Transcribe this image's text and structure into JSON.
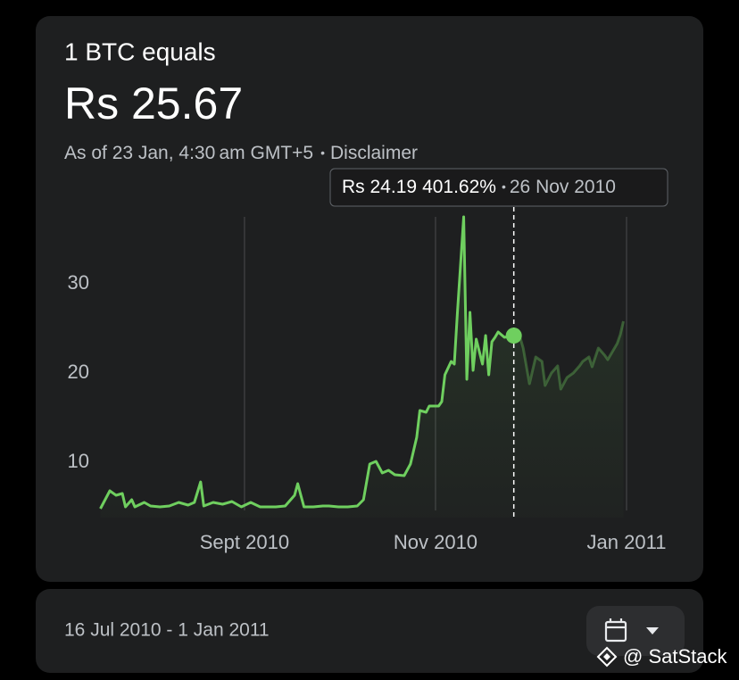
{
  "header": {
    "title": "1 BTC equals",
    "price": "Rs 25.67",
    "as_of": "As of 23 Jan, 4:30 am GMT+5",
    "separator": "•",
    "disclaimer": "Disclaimer"
  },
  "tooltip": {
    "price": "Rs 24.19",
    "change": "401.62%",
    "separator": "•",
    "date": "26 Nov 2010"
  },
  "chart_data": {
    "type": "line",
    "x": [
      "2010-07-17",
      "2010-07-20",
      "2010-07-22",
      "2010-07-24",
      "2010-07-25",
      "2010-07-27",
      "2010-07-28",
      "2010-07-31",
      "2010-08-02",
      "2010-08-05",
      "2010-08-08",
      "2010-08-11",
      "2010-08-14",
      "2010-08-16",
      "2010-08-18",
      "2010-08-19",
      "2010-08-22",
      "2010-08-25",
      "2010-08-28",
      "2010-08-31",
      "2010-09-03",
      "2010-09-06",
      "2010-09-08",
      "2010-09-11",
      "2010-09-14",
      "2010-09-17",
      "2010-09-18",
      "2010-09-20",
      "2010-09-23",
      "2010-09-26",
      "2010-09-28",
      "2010-10-01",
      "2010-10-04",
      "2010-10-07",
      "2010-10-09",
      "2010-10-11",
      "2010-10-13",
      "2010-10-15",
      "2010-10-17",
      "2010-10-19",
      "2010-10-22",
      "2010-10-24",
      "2010-10-26",
      "2010-10-27",
      "2010-10-29",
      "2010-10-30",
      "2010-11-02",
      "2010-11-03",
      "2010-11-04",
      "2010-11-06",
      "2010-11-07",
      "2010-11-08",
      "2010-11-10",
      "2010-11-11",
      "2010-11-12",
      "2010-11-13",
      "2010-11-14",
      "2010-11-16",
      "2010-11-17",
      "2010-11-18",
      "2010-11-19",
      "2010-11-20",
      "2010-11-21",
      "2010-11-23",
      "2010-11-26",
      "2010-11-28",
      "2010-11-29",
      "2010-12-01",
      "2010-12-03",
      "2010-12-05",
      "2010-12-06",
      "2010-12-08",
      "2010-12-10",
      "2010-12-11",
      "2010-12-13",
      "2010-12-15",
      "2010-12-17",
      "2010-12-18",
      "2010-12-20",
      "2010-12-21",
      "2010-12-23",
      "2010-12-25",
      "2010-12-26",
      "2010-12-29",
      "2010-12-30",
      "2010-12-31"
    ],
    "series": [
      {
        "color": "#6fcf5f",
        "values": [
          4.8,
          6.8,
          6.3,
          6.5,
          5.0,
          5.8,
          5.0,
          5.5,
          5.1,
          5.0,
          5.1,
          5.5,
          5.2,
          5.5,
          7.8,
          5.1,
          5.5,
          5.3,
          5.6,
          5.0,
          5.5,
          5.0,
          5.0,
          5.0,
          5.1,
          6.3,
          7.6,
          5.0,
          5.0,
          5.1,
          5.1,
          5.0,
          5.0,
          5.1,
          5.8,
          9.8,
          10.1,
          8.8,
          9.1,
          8.6,
          8.5,
          9.8,
          12.8,
          15.8,
          15.6,
          16.3,
          16.3,
          16.8,
          19.8,
          21.3,
          21.0,
          26.8,
          37.5,
          19.3,
          26.8,
          20.3,
          23.8,
          21.0,
          24.2,
          19.8,
          23.5,
          24.0,
          24.6,
          24.0,
          24.19,
          24.0,
          22.8,
          18.8,
          21.8,
          21.3,
          18.6,
          20.0,
          20.8,
          18.2,
          19.5,
          20.0,
          20.8,
          21.3,
          21.8,
          20.7,
          22.8,
          22.0,
          21.5,
          23.3,
          24.3,
          25.8
        ]
      }
    ],
    "xlim": [
      "2010-07-16",
      "2011-01-01"
    ],
    "xticks": [
      {
        "value": "2010-09-01",
        "label": "Sept 2010"
      },
      {
        "value": "2010-11-01",
        "label": "Nov 2010"
      },
      {
        "value": "2011-01-01",
        "label": "Jan 2011"
      }
    ],
    "ylim": [
      3.8,
      37.5
    ],
    "yticks": [
      10,
      20,
      30
    ],
    "grid": true
  },
  "footer": {
    "range": "16 Jul 2010 - 1 Jan 2011"
  },
  "watermark": "@ SatStack"
}
